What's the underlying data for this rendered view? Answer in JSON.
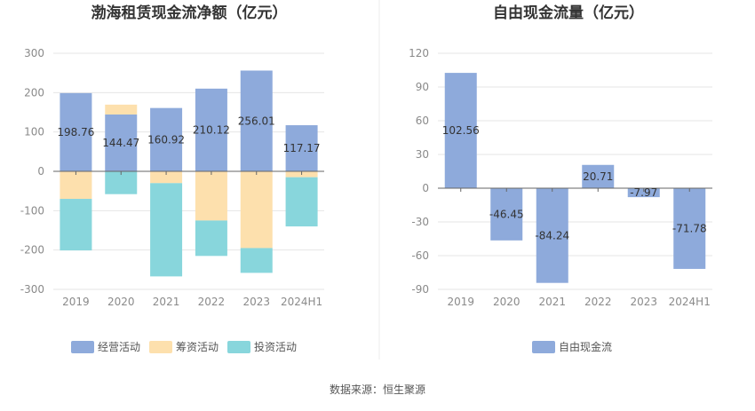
{
  "source_text": "数据来源：恒生聚源",
  "colors": {
    "operating": "#8eaadb",
    "financing": "#fde0ad",
    "investing": "#88d6dc",
    "fcf": "#8eaadb",
    "grid": "#e6e6e6",
    "axis": "#666666"
  },
  "chart_data": [
    {
      "id": "net-cash",
      "type": "bar",
      "stacked": true,
      "title": "渤海租赁现金流净额（亿元）",
      "categories": [
        "2019",
        "2020",
        "2021",
        "2022",
        "2023",
        "2024H1"
      ],
      "ylim": [
        -300,
        300
      ],
      "yticks": [
        300,
        200,
        100,
        0,
        -100,
        -200,
        -300
      ],
      "legend_position": "bottom",
      "series": [
        {
          "key": "operating",
          "name": "经营活动",
          "values": [
            198.76,
            144.47,
            160.92,
            210.12,
            256.01,
            117.17
          ]
        },
        {
          "key": "financing",
          "name": "筹资活动",
          "values": [
            -70,
            25,
            -30,
            -125,
            -195,
            -15
          ]
        },
        {
          "key": "investing",
          "name": "投资活动",
          "values": [
            -131,
            -58,
            -237,
            -90,
            -63,
            -125
          ]
        }
      ],
      "data_labels": [
        "198.76",
        "144.47",
        "160.92",
        "210.12",
        "256.01",
        "117.17"
      ]
    },
    {
      "id": "fcf",
      "type": "bar",
      "title": "自由现金流量（亿元）",
      "categories": [
        "2019",
        "2020",
        "2021",
        "2022",
        "2023",
        "2024H1"
      ],
      "ylim": [
        -90,
        120
      ],
      "yticks": [
        120,
        90,
        60,
        30,
        0,
        -30,
        -60,
        -90
      ],
      "legend_position": "bottom",
      "series": [
        {
          "key": "fcf",
          "name": "自由现金流",
          "values": [
            102.56,
            -46.45,
            -84.24,
            20.71,
            -7.97,
            -71.78
          ]
        }
      ],
      "data_labels": [
        "102.56",
        "-46.45",
        "-84.24",
        "20.71",
        "-7.97",
        "-71.78"
      ]
    }
  ]
}
